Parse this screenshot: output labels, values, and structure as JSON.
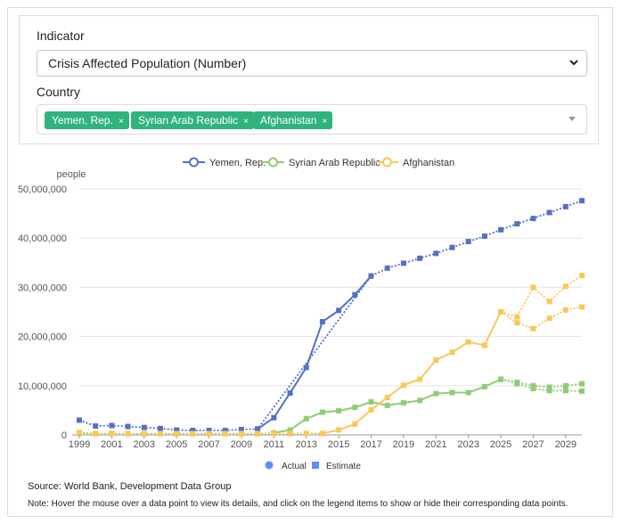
{
  "filters": {
    "indicator_label": "Indicator",
    "indicator_value": "Crisis Affected Population (Number)",
    "country_label": "Country",
    "countries": [
      "Yemen, Rep.",
      "Syrian Arab Republic",
      "Afghanistan"
    ],
    "tag_remove": "×"
  },
  "colors": {
    "yemen": "#5470c6",
    "syria": "#91cc75",
    "afghanistan": "#fac858",
    "tag": "#2fb47c",
    "actual_marker": "#5b8ff9",
    "estimate_marker": "#5b8ff9"
  },
  "footer": {
    "source": "Source: World Bank, Development Data Group",
    "note": "Note: Hover the mouse over a data point to view its details, and click on the legend items to show or hide their corresponding data points."
  },
  "chart_data": {
    "type": "line",
    "ylabel": "people",
    "ylim": [
      0,
      50000000
    ],
    "yticks": [
      "0",
      "10,000,000",
      "20,000,000",
      "30,000,000",
      "40,000,000",
      "50,000,000"
    ],
    "xlim": [
      1999,
      2030
    ],
    "xticks": [
      "1999",
      "2001",
      "2003",
      "2005",
      "2007",
      "2009",
      "2011",
      "2013",
      "2015",
      "2017",
      "2019",
      "2021",
      "2023",
      "2025",
      "2027",
      "2029"
    ],
    "legend_position": "top-center",
    "marker_legend": [
      {
        "label": "Actual",
        "shape": "circle"
      },
      {
        "label": "Estimate",
        "shape": "square"
      }
    ],
    "series": [
      {
        "name": "Yemen, Rep.",
        "color_key": "yemen",
        "actual": [
          [
            2010,
            1200000
          ],
          [
            2011,
            3500000
          ],
          [
            2012,
            8500000
          ],
          [
            2013,
            13700000
          ],
          [
            2014,
            23000000
          ],
          [
            2015,
            25300000
          ],
          [
            2016,
            28500000
          ],
          [
            2017,
            32300000
          ]
        ],
        "estimate": [
          [
            1999,
            3000000
          ],
          [
            2000,
            1800000
          ],
          [
            2001,
            1900000
          ],
          [
            2002,
            1700000
          ],
          [
            2003,
            1500000
          ],
          [
            2004,
            1300000
          ],
          [
            2005,
            1000000
          ],
          [
            2006,
            900000
          ],
          [
            2007,
            900000
          ],
          [
            2008,
            900000
          ],
          [
            2009,
            1100000
          ],
          [
            2010,
            1200000
          ],
          [
            2017,
            32300000
          ],
          [
            2018,
            33900000
          ],
          [
            2019,
            34900000
          ],
          [
            2020,
            35900000
          ],
          [
            2021,
            36900000
          ],
          [
            2022,
            38100000
          ],
          [
            2023,
            39300000
          ],
          [
            2024,
            40400000
          ],
          [
            2025,
            41700000
          ],
          [
            2026,
            42900000
          ],
          [
            2027,
            44000000
          ],
          [
            2028,
            45200000
          ],
          [
            2029,
            46400000
          ],
          [
            2030,
            47600000
          ]
        ]
      },
      {
        "name": "Syrian Arab Republic",
        "color_key": "syria",
        "actual": [
          [
            2011,
            400000
          ],
          [
            2012,
            1000000
          ],
          [
            2013,
            3300000
          ],
          [
            2014,
            4600000
          ],
          [
            2015,
            4900000
          ],
          [
            2016,
            5600000
          ],
          [
            2017,
            6700000
          ],
          [
            2018,
            6000000
          ],
          [
            2019,
            6500000
          ],
          [
            2020,
            7000000
          ],
          [
            2021,
            8400000
          ],
          [
            2022,
            8600000
          ],
          [
            2023,
            8600000
          ],
          [
            2024,
            9800000
          ],
          [
            2025,
            11300000
          ]
        ],
        "estimate": [
          [
            1999,
            300000
          ],
          [
            2000,
            250000
          ],
          [
            2001,
            300000
          ],
          [
            2002,
            250000
          ],
          [
            2003,
            250000
          ],
          [
            2004,
            250000
          ],
          [
            2005,
            250000
          ],
          [
            2006,
            250000
          ],
          [
            2007,
            250000
          ],
          [
            2008,
            250000
          ],
          [
            2009,
            250000
          ],
          [
            2010,
            250000
          ],
          [
            2011,
            400000
          ]
        ],
        "estimate_branches": [
          [
            [
              2025,
              11300000
            ],
            [
              2026,
              10700000
            ],
            [
              2027,
              10000000
            ],
            [
              2028,
              9700000
            ],
            [
              2029,
              10000000
            ],
            [
              2030,
              10400000
            ]
          ],
          [
            [
              2025,
              11300000
            ],
            [
              2026,
              10400000
            ],
            [
              2027,
              9400000
            ],
            [
              2028,
              9000000
            ],
            [
              2029,
              9000000
            ],
            [
              2030,
              8900000
            ]
          ]
        ]
      },
      {
        "name": "Afghanistan",
        "color_key": "afghanistan",
        "actual": [
          [
            2014,
            300000
          ],
          [
            2015,
            1000000
          ],
          [
            2016,
            2200000
          ],
          [
            2017,
            5100000
          ],
          [
            2018,
            7600000
          ],
          [
            2019,
            10100000
          ],
          [
            2020,
            11300000
          ],
          [
            2021,
            15200000
          ],
          [
            2022,
            16800000
          ],
          [
            2023,
            18900000
          ],
          [
            2024,
            18200000
          ],
          [
            2025,
            25000000
          ]
        ],
        "estimate": [
          [
            1999,
            500000
          ],
          [
            2000,
            300000
          ],
          [
            2001,
            300000
          ],
          [
            2002,
            250000
          ],
          [
            2003,
            250000
          ],
          [
            2004,
            250000
          ],
          [
            2005,
            250000
          ],
          [
            2006,
            250000
          ],
          [
            2007,
            250000
          ],
          [
            2008,
            250000
          ],
          [
            2009,
            250000
          ],
          [
            2010,
            250000
          ],
          [
            2011,
            250000
          ],
          [
            2012,
            250000
          ],
          [
            2013,
            300000
          ],
          [
            2014,
            300000
          ]
        ],
        "estimate_branches": [
          [
            [
              2025,
              25000000
            ],
            [
              2026,
              24000000
            ],
            [
              2027,
              30000000
            ],
            [
              2028,
              27100000
            ],
            [
              2029,
              30200000
            ],
            [
              2030,
              32400000
            ]
          ],
          [
            [
              2025,
              25000000
            ],
            [
              2026,
              22800000
            ],
            [
              2027,
              21600000
            ],
            [
              2028,
              23700000
            ],
            [
              2029,
              25400000
            ],
            [
              2030,
              26000000
            ]
          ]
        ]
      }
    ]
  }
}
